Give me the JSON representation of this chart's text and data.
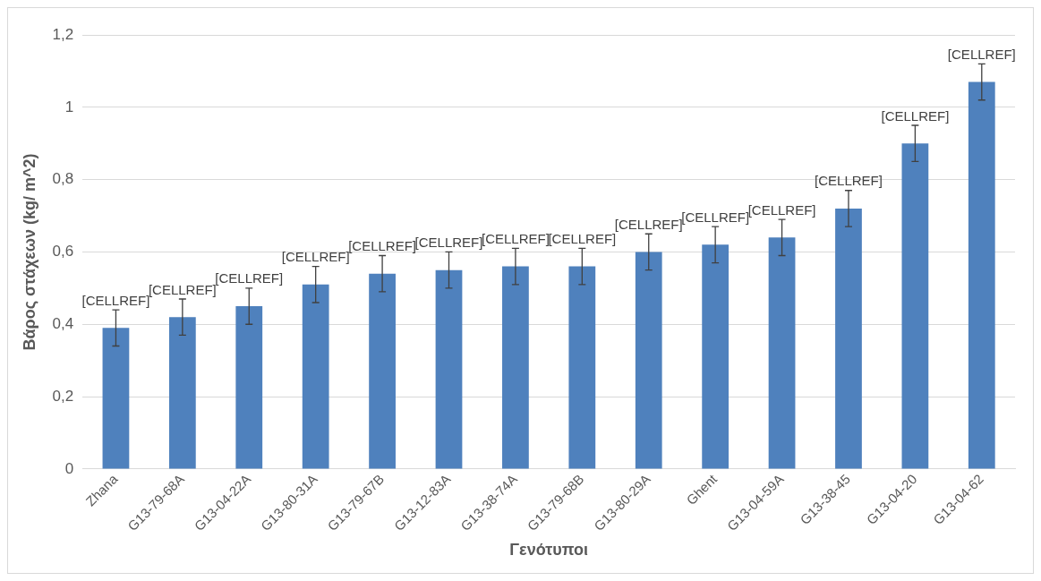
{
  "chart_data": {
    "type": "bar",
    "xlabel": "Γενότυποι",
    "ylabel": "Βάρος στάχεων (kg/ m^2)",
    "categories": [
      "Zhana",
      "G13-79-68A",
      "G13-04-22A",
      "G13-80-31A",
      "G13-79-67B",
      "G13-12-83A",
      "G13-38-74A",
      "G13-79-68B",
      "G13-80-29A",
      "Ghent",
      "G13-04-59A",
      "G13-38-45",
      "G13-04-20",
      "G13-04-62"
    ],
    "values": [
      0.39,
      0.42,
      0.45,
      0.51,
      0.54,
      0.55,
      0.56,
      0.56,
      0.6,
      0.62,
      0.64,
      0.72,
      0.9,
      1.07
    ],
    "errors": [
      0.05,
      0.05,
      0.05,
      0.05,
      0.05,
      0.05,
      0.05,
      0.05,
      0.05,
      0.05,
      0.05,
      0.05,
      0.05,
      0.05
    ],
    "value_labels": [
      "[CELLREF]",
      "[CELLREF]",
      "[CELLREF]",
      "[CELLREF]",
      "[CELLREF]",
      "[CELLREF]",
      "[CELLREF]",
      "[CELLREF]",
      "[CELLREF]",
      "[CELLREF]",
      "[CELLREF]",
      "[CELLREF]",
      "[CELLREF]",
      "[CELLREF]"
    ],
    "color": "#4f81bd",
    "ylim": [
      0,
      1.2
    ],
    "yticks": [
      0,
      {
        "value": 0.2,
        "label": "0,2"
      },
      {
        "value": 0.4,
        "label": "0,4"
      },
      {
        "value": 0.6,
        "label": "0,6"
      },
      {
        "value": 0.8,
        "label": "0,8"
      },
      1,
      {
        "value": 1.2,
        "label": "1,2"
      }
    ],
    "grid": "y",
    "legend": false
  }
}
